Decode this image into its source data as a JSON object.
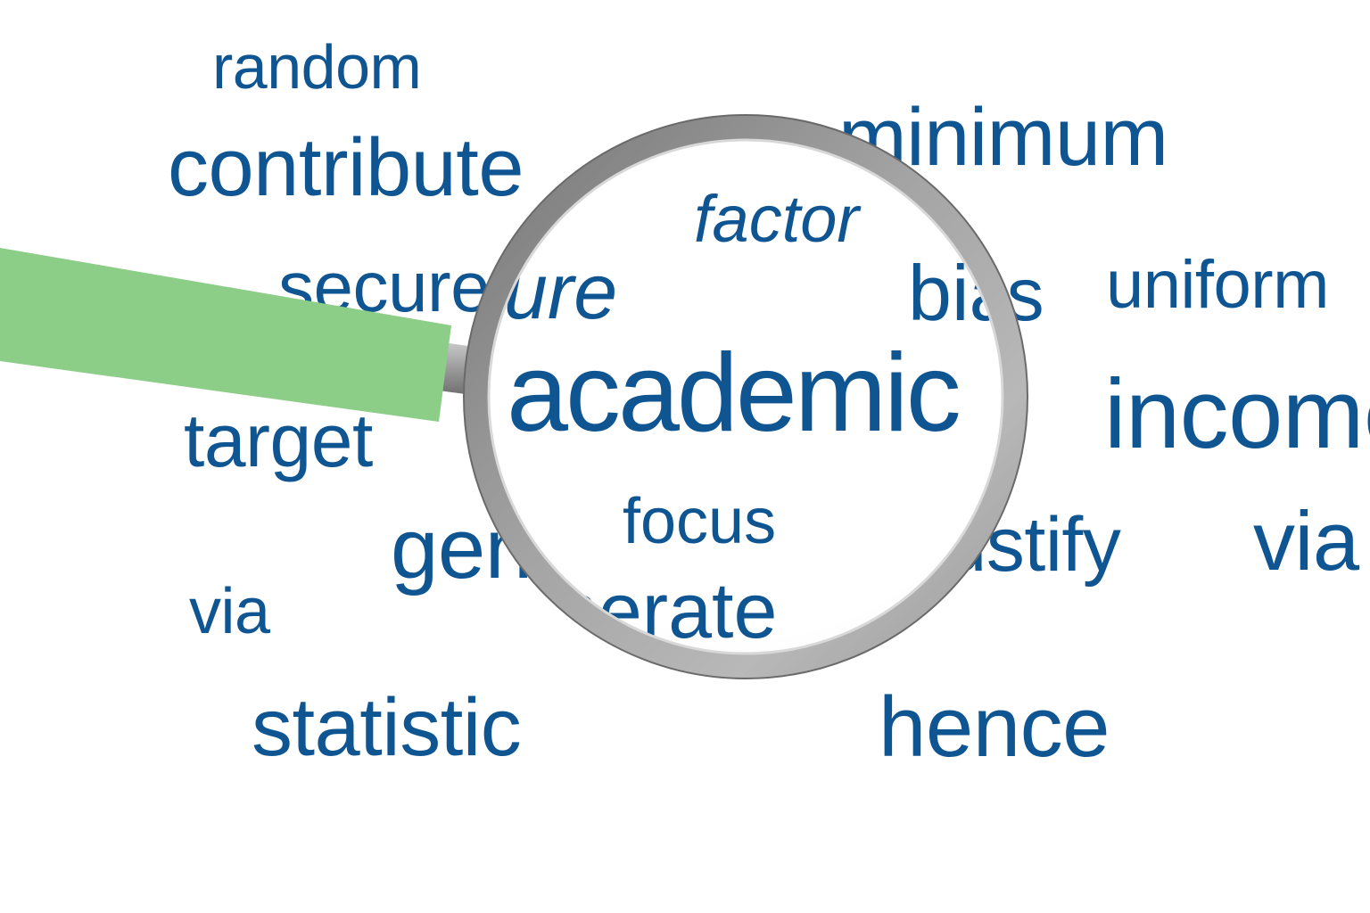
{
  "colors": {
    "word_blue": "#0f5592",
    "handle_green": "#8ccd88",
    "ring_gray": "#8f8f8f",
    "background": "#ffffff"
  },
  "icons": {
    "magnifier": "magnifying-glass-icon"
  },
  "words": {
    "random": "random",
    "contribute": "contribute",
    "minimum": "minimum",
    "secure": "secure",
    "uniform": "uniform",
    "bias": "bias",
    "target": "target",
    "income": "income",
    "generate": "generate",
    "justify": "justify",
    "via_right": "via",
    "via_left": "via",
    "statistic": "statistic",
    "hence": "hence"
  },
  "lens_words": {
    "factor": "factor",
    "bias": "bias",
    "secure": "secure",
    "academic": "academic",
    "focus": "focus",
    "generate": "generate"
  }
}
